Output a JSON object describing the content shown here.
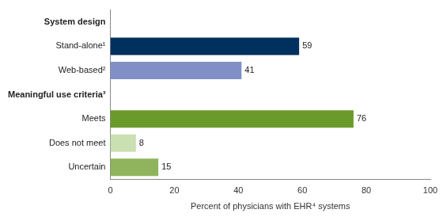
{
  "chart_data": {
    "type": "bar",
    "orientation": "horizontal",
    "categories": [
      "System design",
      "Stand-alone¹",
      "Web-based²",
      "Meaningful use criteria³",
      "Meets",
      "Does not meet",
      "Uncertain"
    ],
    "values": [
      null,
      59,
      41,
      null,
      76,
      8,
      15
    ],
    "colors": [
      null,
      "#00305e",
      "#8090c6",
      null,
      "#6b9a2a",
      "#cadfb2",
      "#90b45e"
    ],
    "xlabel": "Percent of physicians with EHR⁴ systems",
    "xlim": [
      0,
      100
    ],
    "xticks": [
      0,
      20,
      40,
      60,
      80,
      100
    ],
    "data_labels": true,
    "grid": false
  }
}
